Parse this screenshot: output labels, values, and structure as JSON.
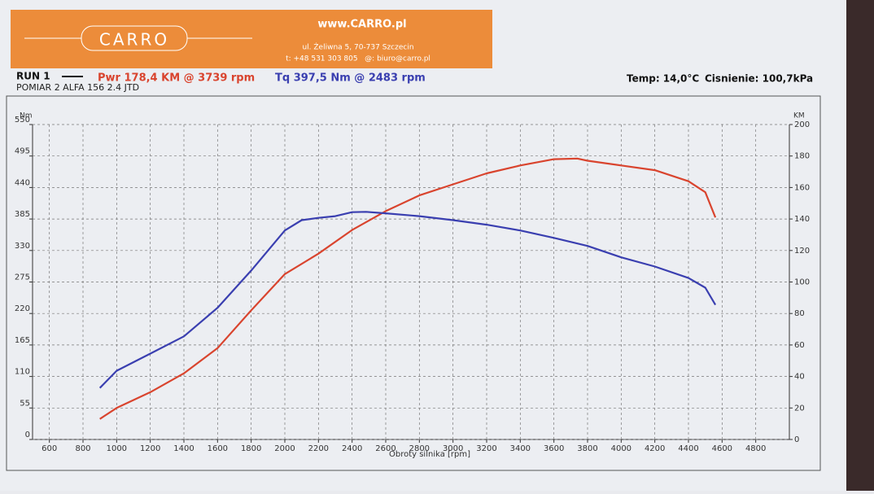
{
  "header": {
    "url": "www.CARRO.pl",
    "logo": "CARRO",
    "address": "ul. Żeliwna 5, 70-737 Szczecin",
    "contact": "t: +48 531 303 805   @: biuro@carro.pl"
  },
  "chart_data": {
    "type": "line",
    "run": "RUN 1",
    "power_peak": "Pwr 178,4 KM @ 3739 rpm",
    "torque_peak": "Tq 397,5 Nm @ 2483 rpm",
    "subtitle": "POMIAR 2 ALFA 156 2.4 JTD",
    "temperature": "Temp: 14,0°C",
    "pressure": "Cisnienie: 100,7kPa",
    "xlabel": "Obroty silnika [rpm]",
    "ylabel": "Nm",
    "y2label": "KM",
    "xlim": [
      500,
      5000
    ],
    "xticks": [
      600,
      800,
      1000,
      1200,
      1400,
      1600,
      1800,
      2000,
      2200,
      2400,
      2600,
      2800,
      3000,
      3200,
      3400,
      3600,
      3800,
      4000,
      4200,
      4400,
      4600,
      4800
    ],
    "ylim": [
      0,
      550
    ],
    "yticks": [
      0,
      55,
      110,
      165,
      220,
      275,
      330,
      385,
      440,
      495,
      550
    ],
    "y2lim": [
      0,
      200
    ],
    "y2ticks": [
      0,
      20,
      40,
      60,
      80,
      100,
      120,
      140,
      160,
      180,
      200
    ],
    "grid": true,
    "series": [
      {
        "name": "Pwr",
        "color": "#d9442e",
        "axis": "y2",
        "x": [
          900,
          1000,
          1200,
          1400,
          1600,
          1800,
          2000,
          2200,
          2400,
          2600,
          2800,
          3000,
          3200,
          3400,
          3600,
          3739,
          3800,
          4000,
          4200,
          4400,
          4500,
          4560
        ],
        "values": [
          13,
          20,
          30,
          42,
          58,
          82,
          105,
          118,
          133,
          145,
          155,
          162,
          169,
          174,
          178,
          178.4,
          177,
          174,
          171,
          164,
          157,
          141
        ]
      },
      {
        "name": "Tq",
        "color": "#3a3fb0",
        "axis": "y",
        "x": [
          900,
          1000,
          1200,
          1400,
          1600,
          1800,
          2000,
          2100,
          2200,
          2300,
          2400,
          2483,
          2600,
          2800,
          3000,
          3200,
          3400,
          3600,
          3800,
          4000,
          4200,
          4400,
          4500,
          4560
        ],
        "values": [
          90,
          120,
          150,
          180,
          230,
          295,
          365,
          383,
          387,
          390,
          397,
          397.5,
          395,
          390,
          383,
          375,
          365,
          352,
          338,
          318,
          302,
          282,
          265,
          235
        ]
      }
    ]
  }
}
